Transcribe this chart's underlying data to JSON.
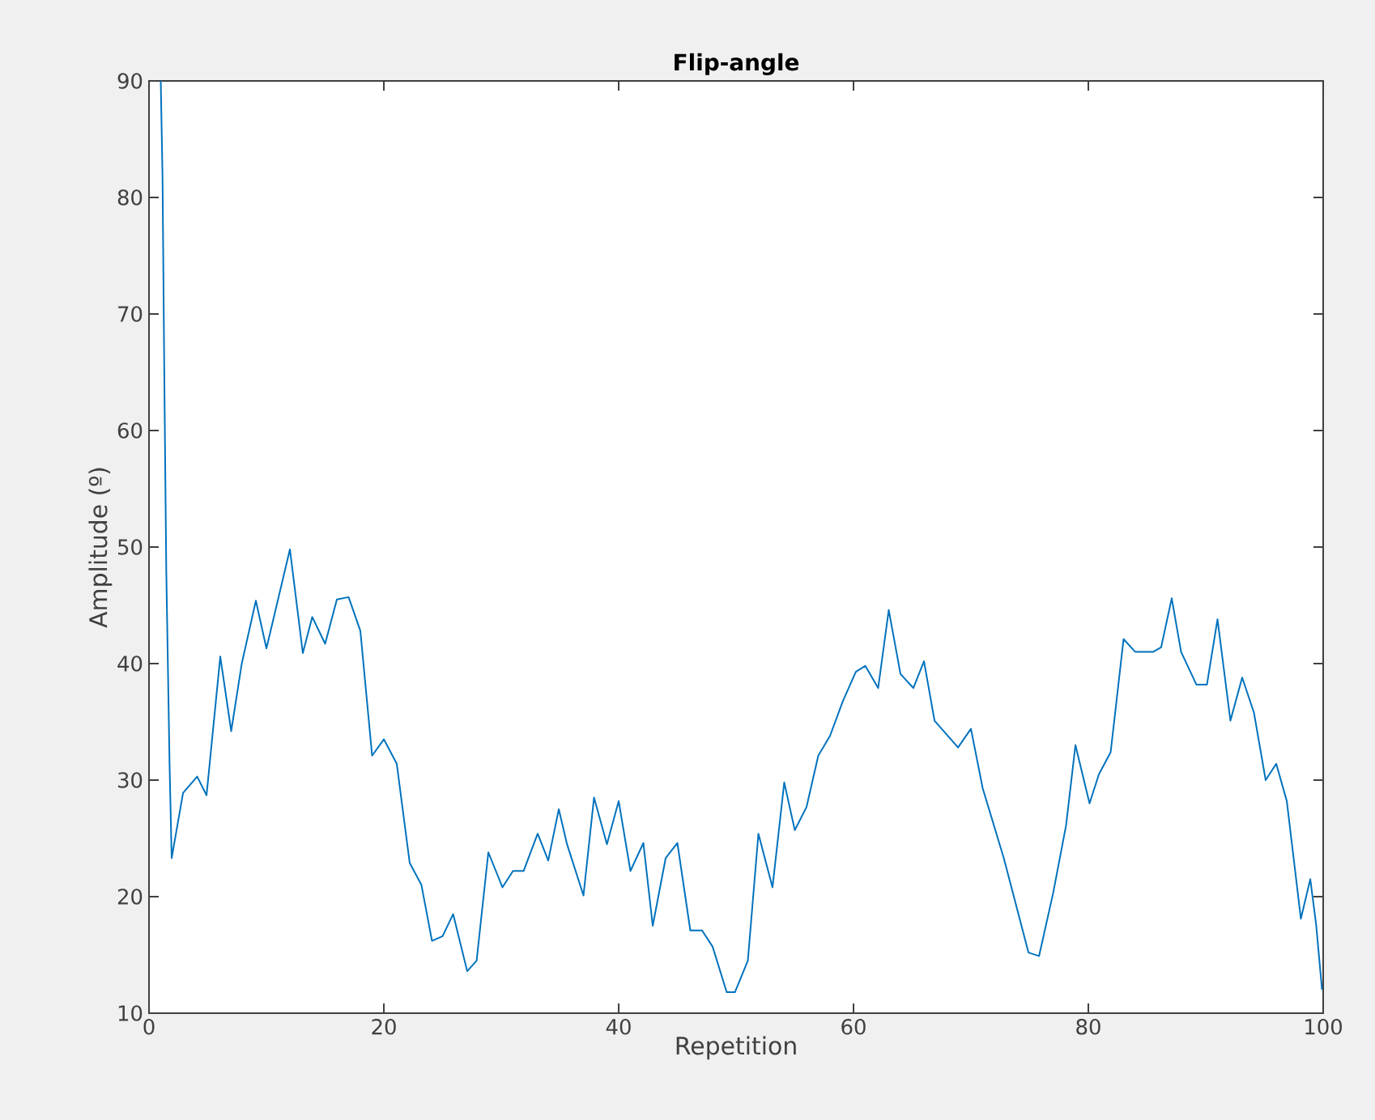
{
  "chart_data": {
    "type": "line",
    "title": "Flip-angle",
    "xlabel": "Repetition",
    "ylabel": "Amplitude (º)",
    "color": "#0072bd",
    "xlim": [
      0,
      100
    ],
    "ylim": [
      10,
      90
    ],
    "xticks": [
      0,
      20,
      40,
      60,
      80,
      100
    ],
    "yticks": [
      10,
      20,
      30,
      40,
      50,
      60,
      70,
      80,
      90
    ],
    "x": [
      1,
      1.15,
      1.3,
      1.47,
      1.75,
      1.93,
      2.9,
      4.1,
      4.9,
      6.07,
      7.0,
      7.9,
      9.1,
      10.0,
      12.0,
      13.1,
      13.9,
      15.0,
      16.0,
      17.0,
      18.0,
      19.0,
      20.0,
      21.1,
      22.2,
      23.2,
      24.1,
      25.0,
      25.9,
      27.1,
      27.9,
      28.9,
      30.1,
      31.0,
      31.9,
      33.1,
      34.0,
      34.9,
      35.6,
      37.0,
      37.9,
      39.0,
      40.0,
      41.0,
      42.1,
      42.9,
      44.0,
      45.0,
      46.1,
      47.1,
      48.0,
      49.2,
      49.9,
      51.0,
      51.9,
      53.1,
      54.1,
      55.0,
      56.0,
      57.0,
      58.0,
      59.1,
      60.2,
      61.0,
      62.1,
      63.0,
      64.0,
      65.1,
      66.0,
      66.9,
      68.9,
      70.0,
      71.0,
      72.8,
      74.9,
      75.8,
      77.0,
      78.1,
      78.9,
      80.1,
      80.9,
      81.9,
      83.0,
      84.0,
      85.5,
      86.2,
      87.1,
      87.9,
      89.2,
      90.1,
      91.0,
      92.1,
      93.1,
      94.1,
      95.1,
      96.0,
      96.9,
      98.1,
      98.9,
      99.4,
      99.9
    ],
    "values": [
      90,
      81.8,
      65,
      48,
      31.4,
      23.3,
      28.9,
      30.3,
      28.7,
      40.6,
      34.2,
      40,
      45.4,
      41.3,
      49.8,
      40.9,
      44.0,
      41.7,
      45.5,
      45.7,
      42.8,
      32.1,
      33.5,
      31.4,
      22.9,
      21.0,
      16.2,
      16.6,
      18.5,
      13.6,
      14.5,
      23.8,
      20.8,
      22.2,
      22.2,
      25.4,
      23.1,
      27.5,
      24.5,
      20.1,
      28.5,
      24.5,
      28.2,
      22.2,
      24.6,
      17.5,
      23.3,
      24.6,
      17.1,
      17.1,
      15.7,
      11.8,
      11.8,
      14.5,
      25.4,
      20.8,
      29.8,
      25.7,
      27.7,
      32.1,
      33.8,
      36.8,
      39.3,
      39.8,
      37.9,
      44.6,
      39.1,
      37.9,
      40.2,
      35.1,
      32.8,
      34.4,
      29.3,
      23.3,
      15.2,
      14.9,
      20.3,
      26.1,
      33.0,
      28.0,
      30.5,
      32.4,
      42.1,
      41.0,
      41.0,
      41.4,
      45.6,
      41.0,
      38.2,
      38.2,
      43.8,
      35.1,
      38.8,
      35.8,
      30.0,
      31.4,
      28.2,
      18.1,
      21.5,
      17.6,
      12.0
    ]
  }
}
